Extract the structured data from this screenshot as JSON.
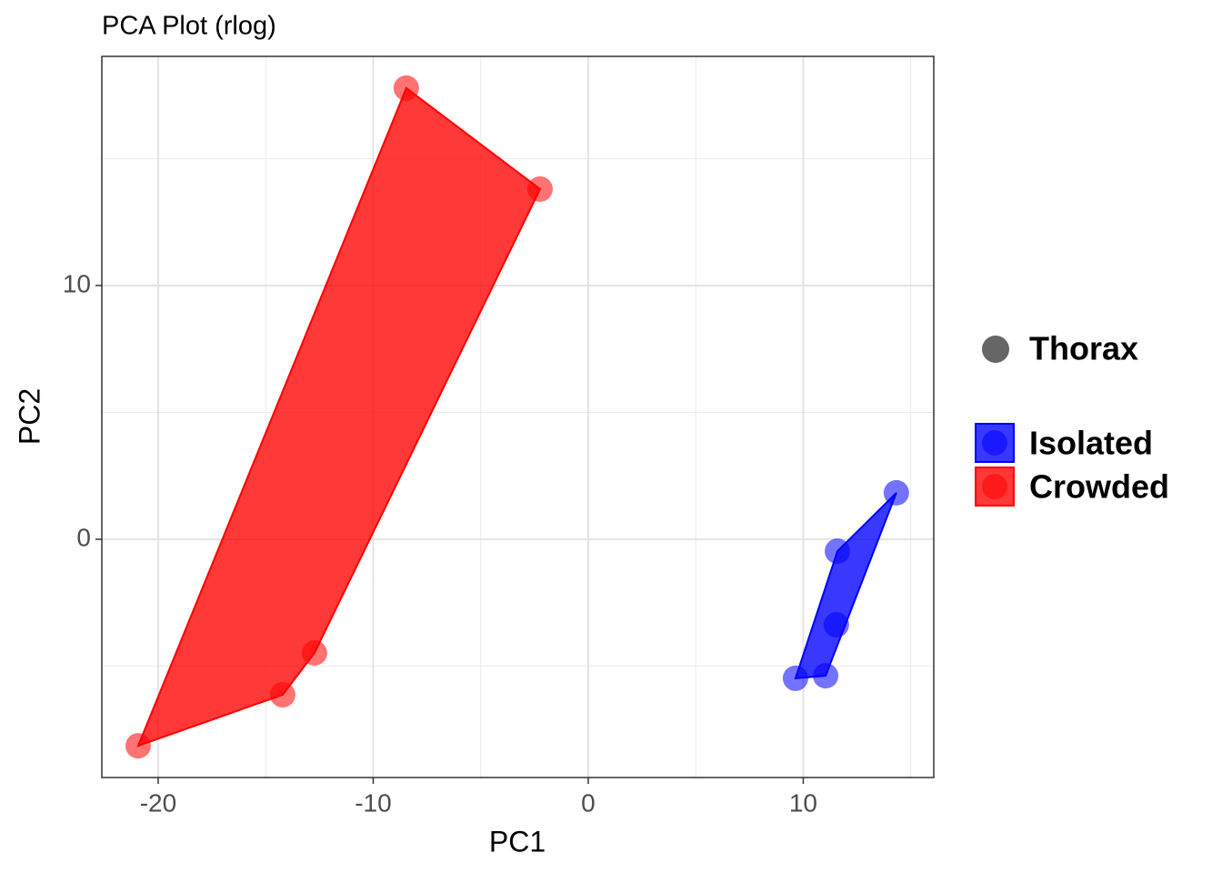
{
  "chart_data": {
    "type": "scatter",
    "title": "PCA Plot (rlog)",
    "x_label": "PC1",
    "y_label": "PC2",
    "xlim": [
      -22.62,
      16.07
    ],
    "ylim": [
      -9.39,
      19.03
    ],
    "xticks": [
      -20,
      -10,
      0,
      10
    ],
    "yticks": [
      0,
      10
    ],
    "grid": true,
    "minor_grid": true,
    "hull": true,
    "shape_legend": "Thorax",
    "legend_position": "right",
    "series": [
      {
        "name": "Isolated",
        "color": "#0000ff",
        "x": [
          14.33,
          11.59,
          11.54,
          9.64,
          11.04
        ],
        "y": [
          1.83,
          -0.47,
          -3.37,
          -5.48,
          -5.38
        ]
      },
      {
        "name": "Crowded",
        "color": "#ff0000",
        "x": [
          -8.46,
          -2.24,
          -12.73,
          -14.21,
          -20.93
        ],
        "y": [
          17.78,
          13.8,
          -4.48,
          -6.13,
          -8.14
        ]
      }
    ]
  }
}
